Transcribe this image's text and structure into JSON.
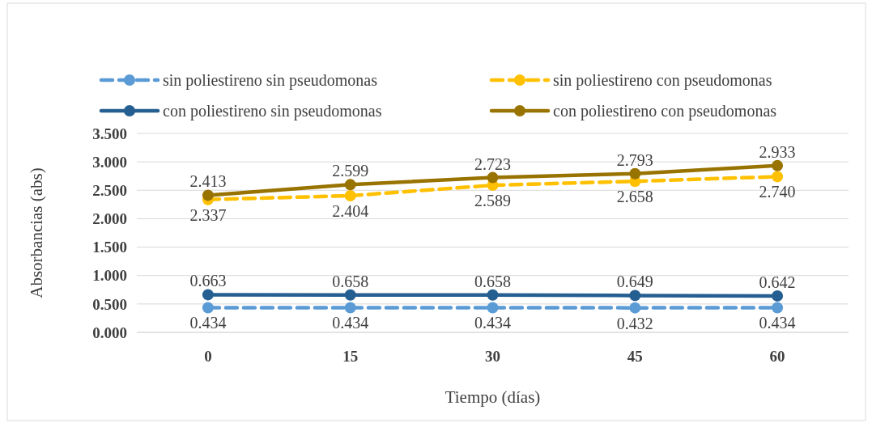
{
  "chart_data": {
    "type": "line",
    "xlabel": "Tiempo (días)",
    "ylabel": "Absorbancias (abs)",
    "categories": [
      "0",
      "15",
      "30",
      "45",
      "60"
    ],
    "ylim": [
      0,
      3.5
    ],
    "yticks": [
      {
        "value": 0,
        "label": "0.000"
      },
      {
        "value": 0.5,
        "label": "0.500"
      },
      {
        "value": 1,
        "label": "1.000"
      },
      {
        "value": 1.5,
        "label": "1.500"
      },
      {
        "value": 2,
        "label": "2.000"
      },
      {
        "value": 2.5,
        "label": "2.500"
      },
      {
        "value": 3,
        "label": "3.000"
      },
      {
        "value": 3.5,
        "label": "3.500"
      }
    ],
    "grid": "y",
    "legend": "top",
    "marker": "circle",
    "series": [
      {
        "name": "sin poliestireno sin pseudomonas",
        "color": "#5b9bd5",
        "line_style": "dashed",
        "values": [
          0.434,
          0.434,
          0.434,
          0.432,
          0.434
        ],
        "value_labels": [
          "0.434",
          "0.434",
          "0.434",
          "0.432",
          "0.434"
        ]
      },
      {
        "name": "sin poliestireno con pseudomonas",
        "color": "#ffc000",
        "line_style": "dashed",
        "values": [
          2.337,
          2.404,
          2.589,
          2.658,
          2.74
        ],
        "value_labels": [
          "2.337",
          "2.404",
          "2.589",
          "2.658",
          "2.740"
        ]
      },
      {
        "name": "con poliestireno sin pseudomonas",
        "color": "#255e91",
        "line_style": "solid",
        "values": [
          0.663,
          0.658,
          0.658,
          0.649,
          0.642
        ],
        "value_labels": [
          "0.663",
          "0.658",
          "0.658",
          "0.649",
          "0.642"
        ]
      },
      {
        "name": "con poliestireno con pseudomonas",
        "color": "#997300",
        "line_style": "solid",
        "values": [
          2.413,
          2.599,
          2.723,
          2.793,
          2.933
        ],
        "value_labels": [
          "2.413",
          "2.599",
          "2.723",
          "2.793",
          "2.933"
        ]
      }
    ]
  }
}
